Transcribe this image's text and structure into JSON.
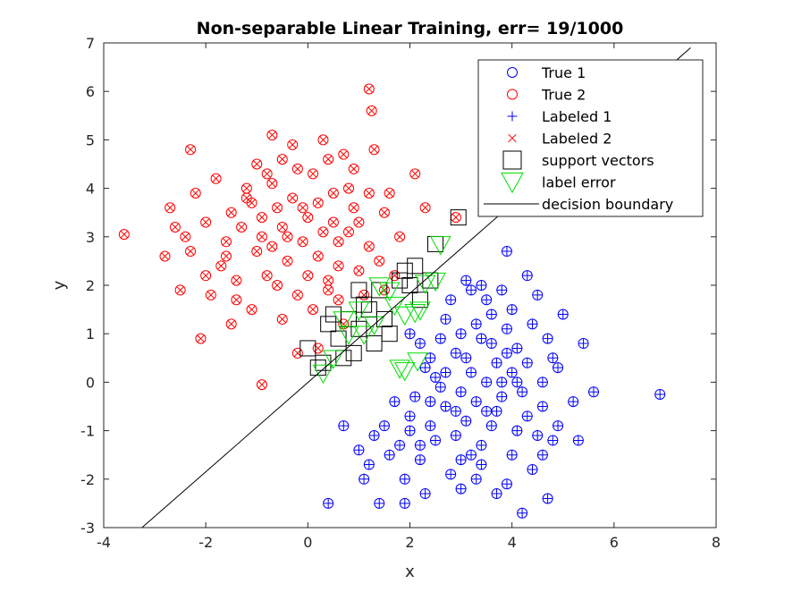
{
  "chart_data": {
    "type": "scatter",
    "title": "Non-separable Linear Training, err= 19/1000",
    "xlabel": "x",
    "ylabel": "y",
    "xlim": [
      -4,
      8
    ],
    "ylim": [
      -3,
      7
    ],
    "xticks": [
      -4,
      -2,
      0,
      2,
      4,
      6,
      8
    ],
    "yticks": [
      -3,
      -2,
      -1,
      0,
      1,
      2,
      3,
      4,
      5,
      6,
      7
    ],
    "grid": false,
    "legend_position": "top-right",
    "colors": {
      "class1": "#0000ff",
      "class2": "#ff0000",
      "error": "#00dd00",
      "sv": "#000000"
    },
    "legend": [
      {
        "key": "true1",
        "label": "True 1"
      },
      {
        "key": "true2",
        "label": "True 2"
      },
      {
        "key": "labeled1",
        "label": "Labeled 1"
      },
      {
        "key": "labeled2",
        "label": "Labeled 2"
      },
      {
        "key": "sv",
        "label": "support vectors"
      },
      {
        "key": "err",
        "label": "label error"
      },
      {
        "key": "boundary",
        "label": "decision boundary"
      }
    ],
    "decision_boundary": {
      "x": [
        -3.25,
        7.5
      ],
      "y": [
        -3,
        6.9
      ]
    },
    "class1_points": [
      [
        3.7,
        -0.6
      ],
      [
        3.0,
        -0.2
      ],
      [
        2.4,
        -0.9
      ],
      [
        4.3,
        0.4
      ],
      [
        3.9,
        1.1
      ],
      [
        2.9,
        0.6
      ],
      [
        3.4,
        -1.3
      ],
      [
        4.6,
        -0.5
      ],
      [
        2.2,
        -1.6
      ],
      [
        3.8,
        0.0
      ],
      [
        4.1,
        -1.0
      ],
      [
        2.7,
        1.3
      ],
      [
        3.2,
        0.2
      ],
      [
        4.9,
        0.3
      ],
      [
        3.5,
        1.7
      ],
      [
        2.5,
        0.1
      ],
      [
        4.4,
        -1.8
      ],
      [
        3.1,
        -0.8
      ],
      [
        1.8,
        -1.3
      ],
      [
        3.6,
        0.8
      ],
      [
        5.2,
        -0.4
      ],
      [
        2.8,
        -1.9
      ],
      [
        4.0,
        1.5
      ],
      [
        3.3,
        -0.4
      ],
      [
        2.1,
        -0.3
      ],
      [
        4.7,
        0.9
      ],
      [
        3.9,
        -2.1
      ],
      [
        1.5,
        -0.9
      ],
      [
        2.6,
        0.9
      ],
      [
        4.2,
        -0.2
      ],
      [
        5.0,
        1.4
      ],
      [
        3.0,
        1.0
      ],
      [
        2.3,
        -2.3
      ],
      [
        3.7,
        0.4
      ],
      [
        4.5,
        -1.1
      ],
      [
        1.9,
        -2.0
      ],
      [
        3.4,
        -1.7
      ],
      [
        2.9,
        -1.1
      ],
      [
        4.8,
        -1.2
      ],
      [
        3.2,
        1.9
      ],
      [
        1.2,
        -1.7
      ],
      [
        2.0,
        -0.7
      ],
      [
        4.3,
        2.2
      ],
      [
        5.4,
        0.8
      ],
      [
        3.6,
        -0.9
      ],
      [
        2.4,
        0.5
      ],
      [
        3.8,
        1.9
      ],
      [
        4.0,
        -1.5
      ],
      [
        1.6,
        -1.5
      ],
      [
        2.7,
        -0.5
      ],
      [
        3.1,
        2.1
      ],
      [
        4.6,
        0.0
      ],
      [
        3.5,
        0.0
      ],
      [
        2.2,
        0.8
      ],
      [
        4.1,
        0.7
      ],
      [
        1.4,
        -2.5
      ],
      [
        3.0,
        -2.2
      ],
      [
        4.9,
        -0.9
      ],
      [
        5.3,
        -1.2
      ],
      [
        3.9,
        2.7
      ],
      [
        2.5,
        -1.2
      ],
      [
        3.3,
        1.2
      ],
      [
        1.0,
        -1.4
      ],
      [
        4.4,
        1.2
      ],
      [
        2.8,
        1.7
      ],
      [
        3.7,
        -2.3
      ],
      [
        4.2,
        -2.7
      ],
      [
        0.7,
        -0.9
      ],
      [
        6.9,
        -0.25
      ],
      [
        4.7,
        -2.4
      ],
      [
        0.4,
        -2.5
      ],
      [
        1.9,
        -2.5
      ],
      [
        5.6,
        -0.2
      ],
      [
        3.4,
        2.0
      ],
      [
        2.0,
        1.0
      ],
      [
        4.0,
        0.2
      ],
      [
        2.6,
        -0.1
      ],
      [
        3.2,
        -1.5
      ],
      [
        3.8,
        -0.3
      ],
      [
        4.5,
        1.8
      ],
      [
        2.3,
        0.3
      ],
      [
        3.6,
        1.4
      ],
      [
        1.7,
        -0.4
      ],
      [
        2.9,
        -0.6
      ],
      [
        4.3,
        -0.7
      ],
      [
        3.1,
        0.5
      ],
      [
        2.0,
        -1.0
      ],
      [
        3.5,
        -0.6
      ],
      [
        4.1,
        0.0
      ],
      [
        2.7,
        0.2
      ],
      [
        1.3,
        -1.1
      ],
      [
        3.0,
        -1.6
      ],
      [
        4.8,
        0.5
      ],
      [
        2.4,
        -0.4
      ],
      [
        3.9,
        0.6
      ],
      [
        3.4,
        0.9
      ],
      [
        2.2,
        -1.3
      ],
      [
        4.6,
        -1.5
      ],
      [
        1.1,
        -2.0
      ],
      [
        3.3,
        -2.0
      ]
    ],
    "class2_points": [
      [
        -0.5,
        3.2
      ],
      [
        0.2,
        2.6
      ],
      [
        -1.2,
        3.8
      ],
      [
        0.5,
        3.9
      ],
      [
        -0.8,
        2.2
      ],
      [
        0.1,
        4.3
      ],
      [
        -1.6,
        2.9
      ],
      [
        0.8,
        3.1
      ],
      [
        -0.2,
        1.8
      ],
      [
        -1.0,
        4.5
      ],
      [
        0.4,
        2.1
      ],
      [
        -2.0,
        3.3
      ],
      [
        0.9,
        4.4
      ],
      [
        -0.6,
        3.6
      ],
      [
        -1.4,
        2.1
      ],
      [
        1.2,
        2.8
      ],
      [
        -0.3,
        4.9
      ],
      [
        0.6,
        1.7
      ],
      [
        -2.3,
        2.7
      ],
      [
        -0.9,
        3.0
      ],
      [
        1.5,
        3.5
      ],
      [
        -1.8,
        4.2
      ],
      [
        0.0,
        3.4
      ],
      [
        -0.4,
        2.5
      ],
      [
        1.0,
        2.3
      ],
      [
        -2.7,
        3.6
      ],
      [
        0.3,
        5.0
      ],
      [
        -1.1,
        1.5
      ],
      [
        -0.7,
        4.1
      ],
      [
        1.8,
        3.0
      ],
      [
        -3.6,
        3.05
      ],
      [
        -2.8,
        2.6
      ],
      [
        -2.5,
        1.9
      ],
      [
        -2.1,
        0.9
      ],
      [
        -0.9,
        -0.05
      ],
      [
        1.2,
        6.05
      ],
      [
        1.25,
        5.6
      ],
      [
        -0.7,
        5.1
      ],
      [
        -2.3,
        4.8
      ],
      [
        2.1,
        4.3
      ],
      [
        0.7,
        1.2
      ],
      [
        -1.5,
        1.2
      ],
      [
        0.2,
        0.7
      ],
      [
        -0.2,
        0.6
      ],
      [
        1.6,
        3.9
      ],
      [
        -1.3,
        3.2
      ],
      [
        0.4,
        4.6
      ],
      [
        -0.1,
        2.9
      ],
      [
        -2.2,
        3.9
      ],
      [
        0.9,
        3.6
      ],
      [
        -0.5,
        1.3
      ],
      [
        1.1,
        1.8
      ],
      [
        -1.7,
        2.4
      ],
      [
        0.6,
        2.9
      ],
      [
        -0.3,
        3.8
      ],
      [
        1.4,
        2.5
      ],
      [
        -2.6,
        3.2
      ],
      [
        0.0,
        2.2
      ],
      [
        -1.0,
        2.7
      ],
      [
        0.5,
        3.3
      ],
      [
        -0.8,
        4.3
      ],
      [
        1.3,
        4.8
      ],
      [
        -1.9,
        1.8
      ],
      [
        0.2,
        3.7
      ],
      [
        -0.6,
        2.0
      ],
      [
        1.7,
        2.2
      ],
      [
        -1.2,
        4.0
      ],
      [
        0.8,
        4.0
      ],
      [
        -0.4,
        3.0
      ],
      [
        2.3,
        3.6
      ],
      [
        -1.5,
        3.5
      ],
      [
        0.1,
        1.5
      ],
      [
        -2.0,
        2.2
      ],
      [
        1.0,
        3.3
      ],
      [
        -0.2,
        4.4
      ],
      [
        0.6,
        2.4
      ],
      [
        -1.4,
        1.7
      ],
      [
        0.3,
        3.1
      ],
      [
        -0.9,
        3.4
      ],
      [
        1.5,
        1.9
      ],
      [
        -2.4,
        3.0
      ],
      [
        0.7,
        4.7
      ],
      [
        -0.1,
        3.6
      ],
      [
        -1.6,
        2.6
      ],
      [
        1.2,
        3.9
      ],
      [
        -0.7,
        2.8
      ],
      [
        0.4,
        1.9
      ],
      [
        -1.1,
        3.7
      ],
      [
        2.9,
        3.4
      ],
      [
        -0.5,
        4.6
      ]
    ],
    "support_vectors": [
      [
        0.0,
        0.7
      ],
      [
        0.3,
        0.4
      ],
      [
        0.6,
        0.9
      ],
      [
        0.8,
        1.3
      ],
      [
        1.0,
        1.1
      ],
      [
        1.2,
        1.5
      ],
      [
        1.4,
        1.9
      ],
      [
        1.6,
        1.0
      ],
      [
        1.8,
        2.1
      ],
      [
        2.0,
        2.0
      ],
      [
        2.2,
        1.7
      ],
      [
        2.4,
        2.1
      ],
      [
        0.5,
        1.4
      ],
      [
        0.9,
        0.6
      ],
      [
        1.1,
        1.6
      ],
      [
        1.5,
        1.3
      ],
      [
        1.9,
        2.3
      ],
      [
        0.2,
        0.3
      ],
      [
        0.7,
        0.5
      ],
      [
        1.3,
        0.8
      ],
      [
        2.5,
        2.85
      ],
      [
        2.95,
        3.4
      ],
      [
        2.1,
        2.4
      ],
      [
        1.0,
        1.9
      ],
      [
        0.4,
        1.2
      ]
    ],
    "label_errors": [
      [
        0.3,
        0.2
      ],
      [
        0.7,
        1.3
      ],
      [
        1.0,
        1.5
      ],
      [
        1.3,
        1.2
      ],
      [
        1.6,
        1.9
      ],
      [
        1.9,
        1.4
      ],
      [
        2.1,
        1.45
      ],
      [
        2.2,
        1.5
      ],
      [
        2.3,
        2.05
      ],
      [
        2.5,
        2.1
      ],
      [
        1.1,
        1.0
      ],
      [
        0.5,
        0.5
      ],
      [
        1.8,
        0.3
      ],
      [
        2.15,
        0.45
      ],
      [
        1.9,
        0.25
      ],
      [
        0.8,
        1.0
      ],
      [
        1.4,
        2.0
      ],
      [
        2.6,
        2.85
      ],
      [
        1.7,
        1.6
      ]
    ]
  }
}
